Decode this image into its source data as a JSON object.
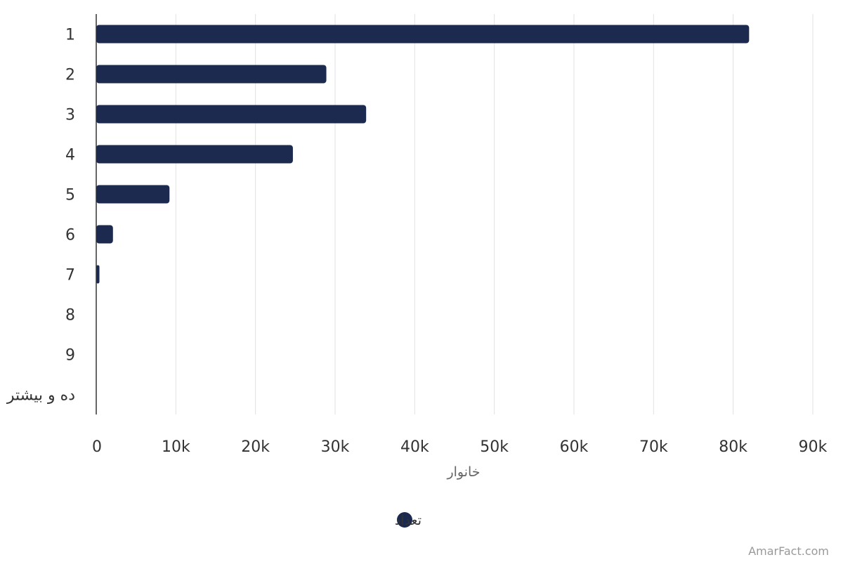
{
  "chart_data": {
    "type": "bar",
    "orientation": "horizontal",
    "categories": [
      "1",
      "2",
      "3",
      "4",
      "5",
      "6",
      "7",
      "8",
      "9",
      "ده و بیشتر"
    ],
    "series": [
      {
        "name": "تعداد",
        "color": "#1b2a4e",
        "values": [
          82000,
          28900,
          33900,
          24700,
          9200,
          2100,
          400,
          0,
          0,
          0
        ]
      }
    ],
    "xlabel": "خانوار",
    "xlim": [
      0,
      90000
    ],
    "xticks": [
      0,
      10000,
      20000,
      30000,
      40000,
      50000,
      60000,
      70000,
      80000,
      90000
    ],
    "xtick_labels": [
      "0",
      "10k",
      "20k",
      "30k",
      "40k",
      "50k",
      "60k",
      "70k",
      "80k",
      "90k"
    ],
    "grid": true,
    "legend_position": "bottom-center"
  },
  "credit": "AmarFact.com"
}
